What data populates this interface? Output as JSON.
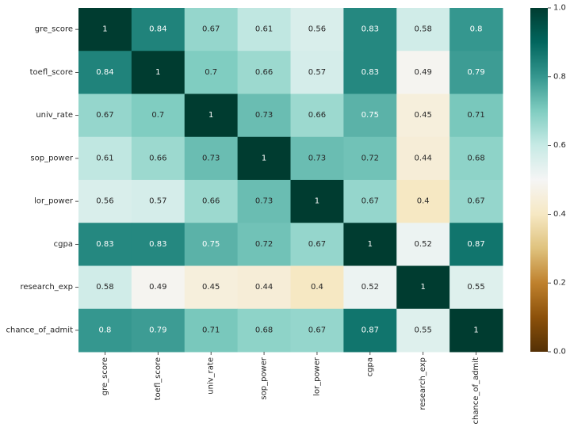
{
  "chart_data": {
    "type": "heatmap",
    "title": "",
    "xlabel": "",
    "ylabel": "",
    "row_labels": [
      "gre_score",
      "toefl_score",
      "univ_rate",
      "sop_power",
      "lor_power",
      "cgpa",
      "research_exp",
      "chance_of_admit"
    ],
    "col_labels": [
      "gre_score",
      "toefl_score",
      "univ_rate",
      "sop_power",
      "lor_power",
      "cgpa",
      "research_exp",
      "chance_of_admit"
    ],
    "values": [
      [
        1,
        0.84,
        0.67,
        0.61,
        0.56,
        0.83,
        0.58,
        0.8
      ],
      [
        0.84,
        1,
        0.7,
        0.66,
        0.57,
        0.83,
        0.49,
        0.79
      ],
      [
        0.67,
        0.7,
        1,
        0.73,
        0.66,
        0.75,
        0.45,
        0.71
      ],
      [
        0.61,
        0.66,
        0.73,
        1,
        0.73,
        0.72,
        0.44,
        0.68
      ],
      [
        0.56,
        0.57,
        0.66,
        0.73,
        1,
        0.67,
        0.4,
        0.67
      ],
      [
        0.83,
        0.83,
        0.75,
        0.72,
        0.67,
        1,
        0.52,
        0.87
      ],
      [
        0.58,
        0.49,
        0.45,
        0.44,
        0.4,
        0.52,
        1,
        0.55
      ],
      [
        0.8,
        0.79,
        0.71,
        0.68,
        0.67,
        0.87,
        0.55,
        1
      ]
    ],
    "colorbar": {
      "colormap": "BrBG",
      "range": [
        0,
        1
      ],
      "ticks": [
        "0.0",
        "0.2",
        "0.4",
        "0.6",
        "0.8",
        "1.0"
      ]
    },
    "annotations_shown": true,
    "grid": false
  }
}
